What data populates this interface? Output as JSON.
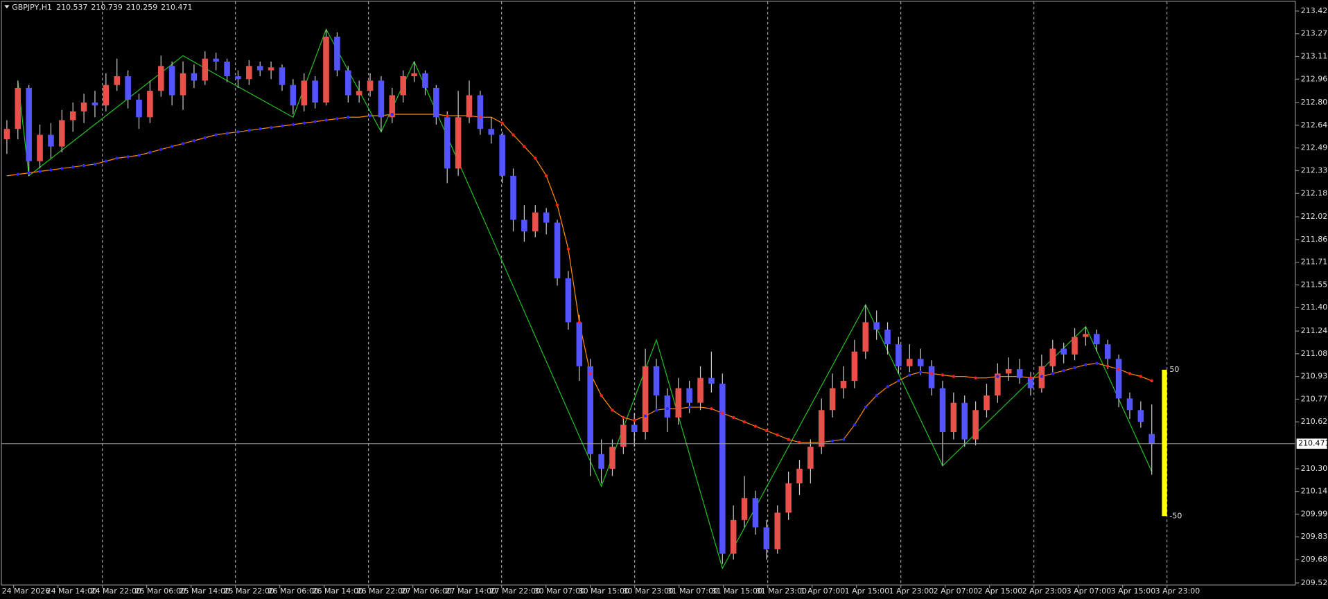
{
  "chart_data": {
    "type": "candlestick",
    "symbol": "GBPJPY,H1",
    "header_ohlc": [
      210.537,
      210.739,
      210.259,
      210.471
    ],
    "up_color": "#e8504a",
    "down_color": "#5454ff",
    "wick_color": "#c8c8c8",
    "grid": true,
    "ylim": [
      209.503,
      213.483
    ],
    "yticks": [
      213.425,
      {
        "value": 213.27,
        "label": "213.270"
      },
      213.115,
      {
        "value": 212.96,
        "label": "212.960"
      },
      {
        "value": 212.8,
        "label": "212.800"
      },
      212.645,
      {
        "value": 212.49,
        "label": "212.490"
      },
      212.335,
      {
        "value": 212.18,
        "label": "212.180"
      },
      {
        "value": 212.02,
        "label": "212.020"
      },
      211.865,
      {
        "value": 211.71,
        "label": "211.710"
      },
      211.555,
      {
        "value": 211.4,
        "label": "211.400"
      },
      {
        "value": 211.24,
        "label": "211.240"
      },
      211.085,
      {
        "value": 210.93,
        "label": "210.930"
      },
      210.775,
      {
        "value": 210.62,
        "label": "210.620"
      },
      {
        "value": 210.3,
        "label": "210.300"
      },
      210.145,
      {
        "value": 209.99,
        "label": "209.990"
      },
      209.835,
      {
        "value": 209.68,
        "label": "209.680"
      },
      {
        "value": 209.52,
        "label": "209.520"
      }
    ],
    "xlabels": [
      "24 Mar 2026",
      "24 Mar 14:00",
      "24 Mar 22:00",
      "25 Mar 06:00",
      "25 Mar 14:00",
      "25 Mar 22:00",
      "26 Mar 06:00",
      "26 Mar 14:00",
      "26 Mar 22:00",
      "27 Mar 06:00",
      "27 Mar 14:00",
      "27 Mar 22:00",
      "30 Mar 07:00",
      "30 Mar 15:00",
      "30 Mar 23:00",
      "31 Mar 07:00",
      "31 Mar 15:00",
      "31 Mar 23:00",
      "1 Apr 07:00",
      "1 Apr 15:00",
      "1 Apr 23:00",
      "2 Apr 07:00",
      "2 Apr 15:00",
      "2 Apr 23:00",
      "3 Apr 07:00",
      "3 Apr 15:00",
      "3 Apr 23:00"
    ],
    "ohlc": [
      [
        212.55,
        212.68,
        212.45,
        212.62
      ],
      [
        212.62,
        212.95,
        212.55,
        212.9
      ],
      [
        212.9,
        212.92,
        212.3,
        212.4
      ],
      [
        212.4,
        212.65,
        212.35,
        212.58
      ],
      [
        212.58,
        212.66,
        212.42,
        212.5
      ],
      [
        212.5,
        212.75,
        212.46,
        212.68
      ],
      [
        212.68,
        212.8,
        212.6,
        212.74
      ],
      [
        212.74,
        212.86,
        212.66,
        212.8
      ],
      [
        212.8,
        212.88,
        212.7,
        212.78
      ],
      [
        212.78,
        213.0,
        212.74,
        212.92
      ],
      [
        212.92,
        213.1,
        212.88,
        212.98
      ],
      [
        212.98,
        213.02,
        212.76,
        212.82
      ],
      [
        212.82,
        212.86,
        212.62,
        212.7
      ],
      [
        212.7,
        212.95,
        212.66,
        212.88
      ],
      [
        212.88,
        213.12,
        212.84,
        213.05
      ],
      [
        213.05,
        213.08,
        212.78,
        212.85
      ],
      [
        212.85,
        213.08,
        212.75,
        213.0
      ],
      [
        213.0,
        213.06,
        212.9,
        212.95
      ],
      [
        212.95,
        213.15,
        212.92,
        213.1
      ],
      [
        213.1,
        213.14,
        213.02,
        213.08
      ],
      [
        213.08,
        213.1,
        212.94,
        212.98
      ],
      [
        212.98,
        213.02,
        212.9,
        212.96
      ],
      [
        212.96,
        213.09,
        212.92,
        213.05
      ],
      [
        213.05,
        213.08,
        212.98,
        213.02
      ],
      [
        213.02,
        213.08,
        212.96,
        213.04
      ],
      [
        213.04,
        213.06,
        212.88,
        212.92
      ],
      [
        212.92,
        212.96,
        212.72,
        212.78
      ],
      [
        212.78,
        213.0,
        212.74,
        212.95
      ],
      [
        212.95,
        212.98,
        212.76,
        212.8
      ],
      [
        212.8,
        213.3,
        212.78,
        213.25
      ],
      [
        213.25,
        213.28,
        212.98,
        213.02
      ],
      [
        213.02,
        213.05,
        212.8,
        212.85
      ],
      [
        212.85,
        212.95,
        212.8,
        212.88
      ],
      [
        212.88,
        213.0,
        212.84,
        212.95
      ],
      [
        212.95,
        212.98,
        212.6,
        212.7
      ],
      [
        212.7,
        212.9,
        212.66,
        212.85
      ],
      [
        212.85,
        213.02,
        212.8,
        212.98
      ],
      [
        212.98,
        213.08,
        212.94,
        213.0
      ],
      [
        213.0,
        213.02,
        212.85,
        212.9
      ],
      [
        212.9,
        212.92,
        212.65,
        212.7
      ],
      [
        212.7,
        212.74,
        212.25,
        212.35
      ],
      [
        212.35,
        212.88,
        212.3,
        212.7
      ],
      [
        212.7,
        212.95,
        212.66,
        212.85
      ],
      [
        212.85,
        212.88,
        212.58,
        212.62
      ],
      [
        212.62,
        212.7,
        212.52,
        212.58
      ],
      [
        212.58,
        212.6,
        212.25,
        212.3
      ],
      [
        212.3,
        212.35,
        211.92,
        212.0
      ],
      [
        212.0,
        212.1,
        211.85,
        211.92
      ],
      [
        211.92,
        212.1,
        211.88,
        212.05
      ],
      [
        212.05,
        212.08,
        211.9,
        211.98
      ],
      [
        211.98,
        212.0,
        211.55,
        211.6
      ],
      [
        211.6,
        211.65,
        211.25,
        211.3
      ],
      [
        211.3,
        211.35,
        210.9,
        211.0
      ],
      [
        211.0,
        211.05,
        210.25,
        210.4
      ],
      [
        210.4,
        210.5,
        210.2,
        210.3
      ],
      [
        210.3,
        210.5,
        210.25,
        210.45
      ],
      [
        210.45,
        210.65,
        210.4,
        210.6
      ],
      [
        210.6,
        210.68,
        210.45,
        210.55
      ],
      [
        210.55,
        211.12,
        210.5,
        211.0
      ],
      [
        211.0,
        211.05,
        210.7,
        210.8
      ],
      [
        210.8,
        210.85,
        210.55,
        210.65
      ],
      [
        210.65,
        210.92,
        210.6,
        210.85
      ],
      [
        210.85,
        210.9,
        210.68,
        210.75
      ],
      [
        210.75,
        211.0,
        210.7,
        210.92
      ],
      [
        210.92,
        211.1,
        210.82,
        210.88
      ],
      [
        210.88,
        210.95,
        209.65,
        209.72
      ],
      [
        209.72,
        210.05,
        209.68,
        209.95
      ],
      [
        209.95,
        210.25,
        209.9,
        210.1
      ],
      [
        210.1,
        210.15,
        209.85,
        209.9
      ],
      [
        209.9,
        209.95,
        209.68,
        209.75
      ],
      [
        209.75,
        210.05,
        209.72,
        210.0
      ],
      [
        210.0,
        210.28,
        209.95,
        210.2
      ],
      [
        210.2,
        210.36,
        210.12,
        210.3
      ],
      [
        210.3,
        210.5,
        210.2,
        210.45
      ],
      [
        210.45,
        210.78,
        210.4,
        210.7
      ],
      [
        210.7,
        210.95,
        210.65,
        210.85
      ],
      [
        210.85,
        211.0,
        210.78,
        210.9
      ],
      [
        210.9,
        211.18,
        210.85,
        211.1
      ],
      [
        211.1,
        211.42,
        211.05,
        211.3
      ],
      [
        211.3,
        211.38,
        211.18,
        211.25
      ],
      [
        211.25,
        211.3,
        211.08,
        211.15
      ],
      [
        211.15,
        211.2,
        210.95,
        211.0
      ],
      [
        211.0,
        211.15,
        210.96,
        211.05
      ],
      [
        211.05,
        211.12,
        210.94,
        211.0
      ],
      [
        211.0,
        211.04,
        210.8,
        210.85
      ],
      [
        210.85,
        210.9,
        210.32,
        210.55
      ],
      [
        210.55,
        210.82,
        210.5,
        210.75
      ],
      [
        210.75,
        210.8,
        210.45,
        210.5
      ],
      [
        210.5,
        210.76,
        210.46,
        210.7
      ],
      [
        210.7,
        210.88,
        210.65,
        210.8
      ],
      [
        210.8,
        211.02,
        210.75,
        210.95
      ],
      [
        210.95,
        211.06,
        210.9,
        210.98
      ],
      [
        210.98,
        211.05,
        210.88,
        210.92
      ],
      [
        210.92,
        210.96,
        210.8,
        210.85
      ],
      [
        210.85,
        211.08,
        210.82,
        211.0
      ],
      [
        211.0,
        211.18,
        210.96,
        211.12
      ],
      [
        211.12,
        211.16,
        211.02,
        211.08
      ],
      [
        211.08,
        211.26,
        211.04,
        211.2
      ],
      [
        211.2,
        211.27,
        211.14,
        211.22
      ],
      [
        211.22,
        211.25,
        211.1,
        211.15
      ],
      [
        211.15,
        211.18,
        210.98,
        211.05
      ],
      [
        211.05,
        211.08,
        210.72,
        210.78
      ],
      [
        210.78,
        210.82,
        210.64,
        210.7
      ],
      [
        210.7,
        210.76,
        210.58,
        210.62
      ],
      [
        210.537,
        210.739,
        210.259,
        210.471
      ]
    ],
    "ma": {
      "color": "#ff8c00",
      "rise_color": "#2a2aff",
      "fall_color": "#ff2020",
      "values": [
        212.3,
        212.31,
        212.32,
        212.33,
        212.34,
        212.35,
        212.36,
        212.37,
        212.38,
        212.4,
        212.42,
        212.43,
        212.44,
        212.46,
        212.48,
        212.5,
        212.52,
        212.54,
        212.56,
        212.58,
        212.59,
        212.6,
        212.61,
        212.62,
        212.63,
        212.64,
        212.65,
        212.66,
        212.67,
        212.68,
        212.69,
        212.7,
        212.7,
        212.71,
        212.71,
        212.72,
        212.72,
        212.72,
        212.72,
        212.72,
        212.71,
        212.71,
        212.71,
        212.7,
        212.7,
        212.66,
        212.58,
        212.5,
        212.42,
        212.3,
        212.1,
        211.8,
        211.3,
        210.95,
        210.8,
        210.7,
        210.65,
        210.63,
        210.66,
        210.7,
        210.71,
        210.71,
        210.72,
        210.72,
        210.71,
        210.68,
        210.65,
        210.62,
        210.59,
        210.56,
        210.53,
        210.5,
        210.48,
        210.48,
        210.48,
        210.49,
        210.5,
        210.6,
        210.72,
        210.8,
        210.86,
        210.9,
        210.94,
        210.96,
        210.95,
        210.94,
        210.93,
        210.93,
        210.92,
        210.92,
        210.93,
        210.93,
        210.93,
        210.92,
        210.93,
        210.95,
        210.97,
        210.99,
        211.01,
        211.02,
        211.0,
        210.98,
        210.95,
        210.93,
        210.9
      ]
    },
    "zigzag": {
      "color": "#22c022",
      "index": [
        1,
        2,
        16,
        20,
        26,
        29,
        34,
        37,
        54,
        59,
        65,
        78,
        85,
        98,
        104
      ],
      "values": [
        212.95,
        212.3,
        213.12,
        212.95,
        212.7,
        213.3,
        212.6,
        213.08,
        210.18,
        211.18,
        209.62,
        211.42,
        210.32,
        211.27,
        210.28
      ]
    },
    "side_indicator": {
      "max": 50,
      "min": -50,
      "color": "#ffff00"
    }
  }
}
